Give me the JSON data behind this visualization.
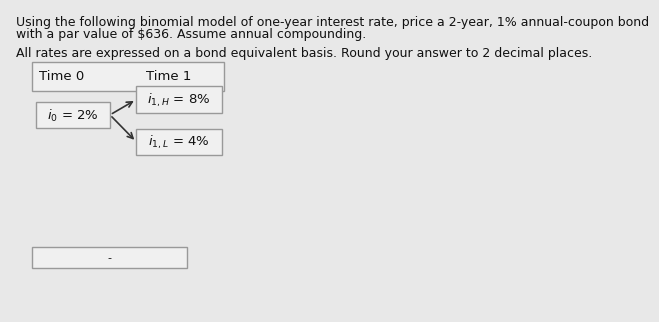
{
  "title_line1": "Using the following binomial model of one-year interest rate, price a 2-year, 1% annual-coupon bond",
  "title_line2": "with a par value of $636. Assume annual compounding.",
  "subtitle": "All rates are expressed on a bond equivalent basis. Round your answer to 2 decimal places.",
  "header_time0": "Time 0",
  "header_time1": "Time 1",
  "label_i0": "$i_0$ = 2%",
  "label_i1H": "$i_{1,H}$ = 8%",
  "label_i1L": "$i_{1,L}$ = 4%",
  "answer_box_text": "-",
  "bg_color": "#e8e8e8",
  "box_face_color": "#f0f0f0",
  "box_edge_color": "#999999",
  "text_color": "#111111",
  "arrow_color": "#333333",
  "title_fontsize": 9.0,
  "label_fontsize": 9.5
}
